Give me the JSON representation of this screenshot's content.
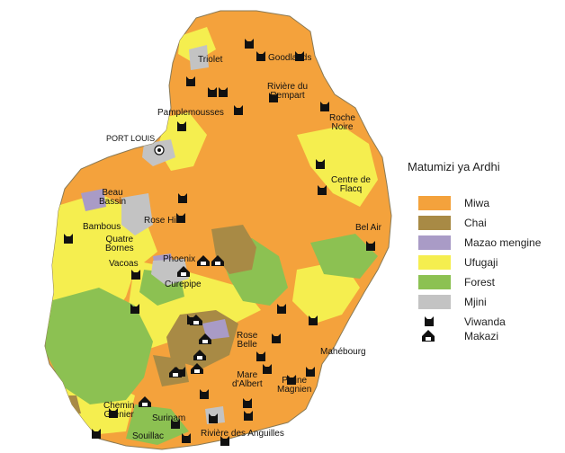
{
  "legend": {
    "title": "Matumizi ya Ardhi",
    "items": [
      {
        "label": "Miwa",
        "color": "#f4a23c",
        "kind": "swatch"
      },
      {
        "label": "Chai",
        "color": "#a88a45",
        "kind": "swatch"
      },
      {
        "label": "Mazao mengine",
        "color": "#a99bc6",
        "kind": "swatch"
      },
      {
        "label": "Ufugaji",
        "color": "#f5ee4f",
        "kind": "swatch"
      },
      {
        "label": "Forest",
        "color": "#8cc152",
        "kind": "swatch"
      },
      {
        "label": "Mjini",
        "color": "#c3c3c3",
        "kind": "swatch"
      },
      {
        "label": "Viwanda",
        "icon": "factory-icon",
        "kind": "icon"
      },
      {
        "label": "Makazi",
        "icon": "settlement-icon",
        "kind": "icon"
      }
    ]
  },
  "places": {
    "triolet": "Triolet",
    "goodlands": "Goodlands",
    "riviere_du_rempart": [
      "Rivière du",
      "Rempart"
    ],
    "pamplemousses": "Pamplemousses",
    "port_louis": "PORT LOUIS",
    "roche_noire": [
      "Roche",
      "Noire"
    ],
    "centre_de_flacq": [
      "Centre de",
      "Flacq"
    ],
    "beau_bassin": [
      "Beau",
      "Bassin"
    ],
    "rose_hill": "Rose Hill",
    "bambous": "Bambous",
    "quatre_bornes": [
      "Quatre",
      "Bornes"
    ],
    "vacoas": "Vacoas",
    "phoenix": "Phoenix",
    "curepipe": "Curepipe",
    "bel_air": "Bel Air",
    "rose_belle": [
      "Rose",
      "Belle"
    ],
    "mahebourg": "Mahébourg",
    "mare_dalbert": [
      "Mare",
      "d'Albert"
    ],
    "plaine_magnien": [
      "Plaine",
      "Magnien"
    ],
    "chemin_grenier": [
      "Chemin",
      "Grenier"
    ],
    "surinam": "Surinam",
    "souillac": "Souillac",
    "riviere_des_anguilles": "Rivière des Anguilles"
  },
  "colors": {
    "sugarcane": "#f4a23c",
    "tea": "#a88a45",
    "other_crops": "#a99bc6",
    "pasture": "#f5ee4f",
    "forest": "#8cc152",
    "urban": "#c3c3c3",
    "symbol": "#111111"
  }
}
